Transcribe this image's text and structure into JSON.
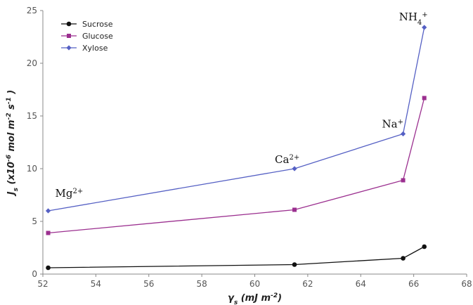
{
  "chart_data": {
    "type": "line",
    "xlim": [
      52,
      68
    ],
    "ylim": [
      0,
      25
    ],
    "xticks": [
      "52",
      "54",
      "56",
      "58",
      "60",
      "62",
      "64",
      "66",
      "68"
    ],
    "yticks": [
      "0",
      "5",
      "10",
      "15",
      "20",
      "25"
    ],
    "xlabel": {
      "base": "γ",
      "sub": "s",
      "unit": " (mJ m",
      "unit_sup": "-2",
      "close": ")"
    },
    "ylabel": {
      "base": "J",
      "sub": "s",
      "unit": " (x10",
      "exp1": "-6",
      "mid": " mol m",
      "exp2": "-2",
      "mid2": " s",
      "exp3": "-1",
      "close": " )"
    },
    "grid": false,
    "legend_position": "top-left",
    "series": [
      {
        "name": "Sucrose",
        "color": "#111111",
        "marker": "circle",
        "x": [
          52.2,
          61.5,
          65.6,
          66.4
        ],
        "y": [
          0.6,
          0.9,
          1.5,
          2.6
        ]
      },
      {
        "name": "Glucose",
        "color": "#9b2f8f",
        "marker": "square",
        "x": [
          52.2,
          61.5,
          65.6,
          66.4
        ],
        "y": [
          3.9,
          6.1,
          8.9,
          16.7
        ]
      },
      {
        "name": "Xylose",
        "color": "#5560c4",
        "marker": "diamond",
        "x": [
          52.2,
          61.5,
          65.6,
          66.4
        ],
        "y": [
          6.0,
          10.0,
          13.3,
          23.4
        ]
      }
    ],
    "annotations": [
      {
        "base": "Mg",
        "sub": "",
        "sup": "2+",
        "x": 52.2,
        "y": 6.0
      },
      {
        "base": "Ca",
        "sub": "",
        "sup": "2+",
        "x": 61.5,
        "y": 10.0
      },
      {
        "base": "Na",
        "sub": "",
        "sup": "+",
        "x": 65.6,
        "y": 13.3
      },
      {
        "base": "NH",
        "sub": "4",
        "sup": "+",
        "x": 66.4,
        "y": 23.4
      }
    ]
  }
}
